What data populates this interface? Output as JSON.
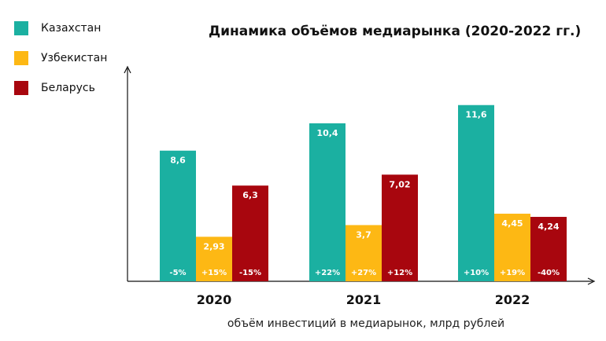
{
  "chart_data": {
    "type": "bar",
    "title": "Динамика объёмов медиарынка (2020-2022 гг.)",
    "xlabel": "объём инвестиций в медиарынок, млрд рублей",
    "ylabel": "",
    "categories": [
      "2020",
      "2021",
      "2022"
    ],
    "ylim": [
      0,
      13.5
    ],
    "legend_position": "top-left",
    "grid": false,
    "series": [
      {
        "name": "Казахстан",
        "color": "#1bb0a1",
        "values": [
          8.6,
          10.4,
          11.6
        ],
        "value_labels": [
          "8,6",
          "10,4",
          "11,6"
        ],
        "change_labels": [
          "-5%",
          "+22%",
          "+10%"
        ]
      },
      {
        "name": "Узбекистан",
        "color": "#fdb814",
        "values": [
          2.93,
          3.7,
          4.45
        ],
        "value_labels": [
          "2,93",
          "3,7",
          "4,45"
        ],
        "change_labels": [
          "+15%",
          "+27%",
          "+19%"
        ]
      },
      {
        "name": "Беларусь",
        "color": "#a8060e",
        "values": [
          6.3,
          7.02,
          4.24
        ],
        "value_labels": [
          "6,3",
          "7,02",
          "4,24"
        ],
        "change_labels": [
          "-15%",
          "+12%",
          "-40%"
        ]
      }
    ]
  }
}
